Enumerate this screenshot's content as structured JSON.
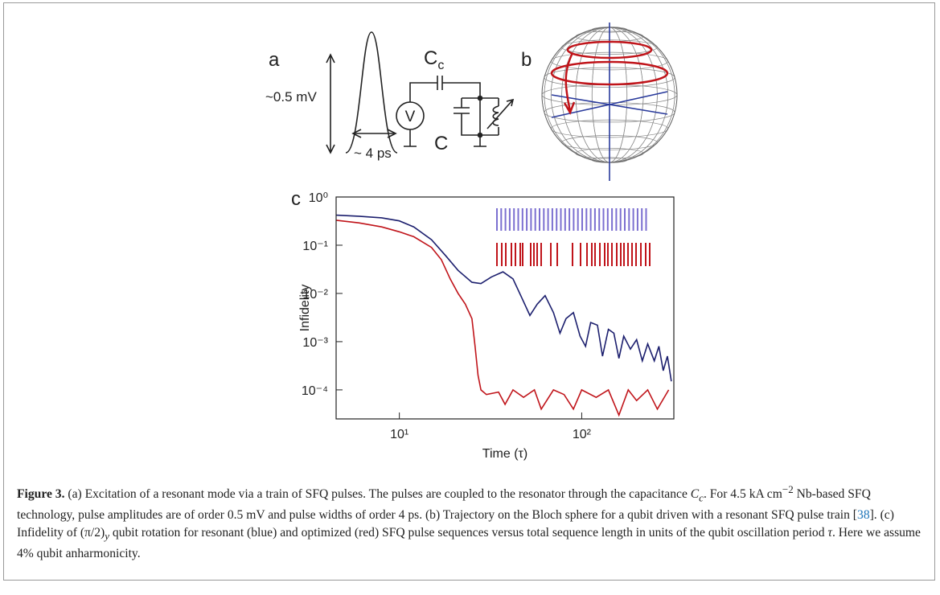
{
  "panel_a": {
    "label": "a",
    "amplitude": "~0.5 mV",
    "width": "~ 4 ps",
    "coupling_cap": "C",
    "coupling_cap_sub": "c",
    "source": "V",
    "cap": "C"
  },
  "panel_b": {
    "label": "b"
  },
  "chart_data": {
    "type": "line",
    "label": "c",
    "ylabel": "Infidelity",
    "xlabel": "Time (τ)",
    "xscale": "log",
    "yscale": "log",
    "xlim": [
      4.5,
      320
    ],
    "ylim": [
      2.5e-05,
      1
    ],
    "xticks": [
      {
        "value": 10,
        "label": "10¹"
      },
      {
        "value": 100,
        "label": "10²"
      }
    ],
    "yticks": [
      {
        "value": 1,
        "label": "10⁰"
      },
      {
        "value": 0.1,
        "label": "10⁻¹"
      },
      {
        "value": 0.01,
        "label": "10⁻²"
      },
      {
        "value": 0.001,
        "label": "10⁻³"
      },
      {
        "value": 0.0001,
        "label": "10⁻⁴"
      }
    ],
    "series": [
      {
        "color": "#1c1f6e",
        "x": [
          4.5,
          6,
          8,
          10,
          12,
          15,
          18,
          21,
          25,
          28,
          32,
          37,
          42,
          47,
          52,
          57,
          63,
          70,
          76,
          82,
          90,
          98,
          105,
          112,
          122,
          130,
          140,
          150,
          160,
          170,
          185,
          200,
          215,
          230,
          250,
          265,
          280,
          295,
          310
        ],
        "values": [
          0.42,
          0.4,
          0.37,
          0.32,
          0.24,
          0.13,
          0.06,
          0.03,
          0.017,
          0.016,
          0.022,
          0.028,
          0.02,
          0.008,
          0.0035,
          0.006,
          0.009,
          0.004,
          0.0015,
          0.003,
          0.004,
          0.0013,
          0.0008,
          0.0025,
          0.0022,
          0.0005,
          0.0018,
          0.0015,
          0.00045,
          0.0013,
          0.0007,
          0.0011,
          0.0004,
          0.0009,
          0.0004,
          0.0008,
          0.00025,
          0.0005,
          0.00015
        ]
      },
      {
        "color": "#c0141a",
        "x": [
          4.5,
          6,
          8,
          10,
          12,
          15,
          17,
          19,
          21,
          23,
          25,
          26,
          27,
          28,
          30,
          35,
          38,
          42,
          48,
          55,
          60,
          70,
          80,
          90,
          100,
          120,
          140,
          160,
          180,
          200,
          230,
          260,
          300
        ],
        "values": [
          0.33,
          0.29,
          0.24,
          0.19,
          0.15,
          0.09,
          0.05,
          0.02,
          0.01,
          0.006,
          0.003,
          0.0008,
          0.0002,
          0.0001,
          8e-05,
          9e-05,
          5e-05,
          0.0001,
          7e-05,
          0.0001,
          4e-05,
          0.0001,
          8e-05,
          4e-05,
          0.0001,
          7e-05,
          0.0001,
          3e-05,
          0.0001,
          6e-05,
          0.0001,
          4e-05,
          0.0001
        ]
      }
    ]
  },
  "caption": {
    "label": "Figure 3.",
    "parts": [
      " (a) Excitation of a resonant mode via a train of SFQ pulses. The pulses are coupled to the resonator through the capacitance ",
      "C",
      "c",
      ". For 4.5 kA cm",
      "−2",
      " Nb-based SFQ technology, pulse amplitudes are of order 0.5  mV and pulse widths of order 4  ps. (b) Trajectory on the Bloch sphere for a qubit driven with a resonant SFQ pulse train [",
      "38",
      "]. (c) Infidelity of ",
      "(π/2)",
      "y",
      " qubit rotation for resonant (blue) and optimized (red) SFQ pulse sequences versus total sequence length in units of the qubit oscillation period ",
      "τ",
      ". Here we assume 4% qubit anharmonicity."
    ]
  }
}
